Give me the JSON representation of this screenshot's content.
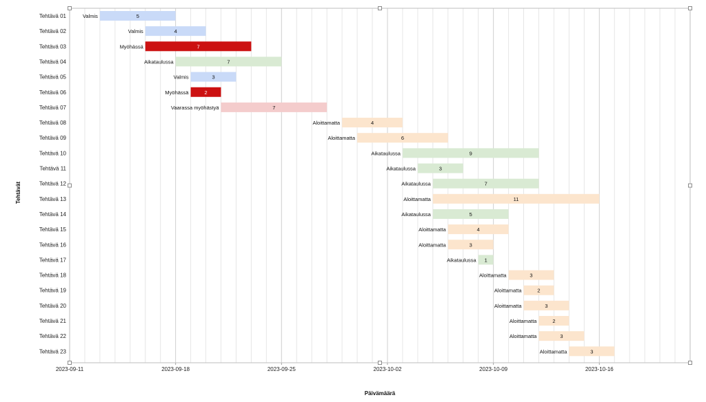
{
  "chart_data": {
    "type": "bar",
    "orientation": "horizontal-gantt",
    "title": "",
    "xlabel": "Päivämäärä",
    "ylabel": "Tehtävät",
    "xlim": [
      "2023-09-11",
      "2023-10-22"
    ],
    "x_ticks": [
      "2023-09-11",
      "2023-09-18",
      "2023-09-25",
      "2023-10-02",
      "2023-10-09",
      "2023-10-16"
    ],
    "grid": "vertical daily",
    "status_colors": {
      "Valmis": "#c9daf8",
      "Myöhässä": "#cc1111",
      "Aikataulussa": "#d9ead3",
      "Vaarassa myöhästyä": "#f4cccc",
      "Aloittamatta": "#fce5cd"
    },
    "tasks": [
      {
        "name": "Tehtävä 01",
        "status": "Valmis",
        "start": "2023-09-13",
        "duration": 5
      },
      {
        "name": "Tehtävä 02",
        "status": "Valmis",
        "start": "2023-09-16",
        "duration": 4
      },
      {
        "name": "Tehtävä 03",
        "status": "Myöhässä",
        "start": "2023-09-16",
        "duration": 7
      },
      {
        "name": "Tehtävä 04",
        "status": "Aikataulussa",
        "start": "2023-09-18",
        "duration": 7
      },
      {
        "name": "Tehtävä 05",
        "status": "Valmis",
        "start": "2023-09-19",
        "duration": 3
      },
      {
        "name": "Tehtävä 06",
        "status": "Myöhässä",
        "start": "2023-09-19",
        "duration": 2
      },
      {
        "name": "Tehtävä 07",
        "status": "Vaarassa myöhästyä",
        "start": "2023-09-21",
        "duration": 7
      },
      {
        "name": "Tehtävä 08",
        "status": "Aloittamatta",
        "start": "2023-09-29",
        "duration": 4
      },
      {
        "name": "Tehtävä 09",
        "status": "Aloittamatta",
        "start": "2023-09-30",
        "duration": 6
      },
      {
        "name": "Tehtävä 10",
        "status": "Aikataulussa",
        "start": "2023-10-03",
        "duration": 9
      },
      {
        "name": "Tehtävä 11",
        "status": "Aikataulussa",
        "start": "2023-10-04",
        "duration": 3
      },
      {
        "name": "Tehtävä 12",
        "status": "Aikataulussa",
        "start": "2023-10-05",
        "duration": 7
      },
      {
        "name": "Tehtävä 13",
        "status": "Aloittamatta",
        "start": "2023-10-05",
        "duration": 11
      },
      {
        "name": "Tehtävä 14",
        "status": "Aikataulussa",
        "start": "2023-10-05",
        "duration": 5
      },
      {
        "name": "Tehtävä 15",
        "status": "Aloittamatta",
        "start": "2023-10-06",
        "duration": 4
      },
      {
        "name": "Tehtävä 16",
        "status": "Aloittamatta",
        "start": "2023-10-06",
        "duration": 3
      },
      {
        "name": "Tehtävä 17",
        "status": "Aikataulussa",
        "start": "2023-10-08",
        "duration": 1
      },
      {
        "name": "Tehtävä 18",
        "status": "Aloittamatta",
        "start": "2023-10-10",
        "duration": 3
      },
      {
        "name": "Tehtävä 19",
        "status": "Aloittamatta",
        "start": "2023-10-11",
        "duration": 2
      },
      {
        "name": "Tehtävä 20",
        "status": "Aloittamatta",
        "start": "2023-10-11",
        "duration": 3
      },
      {
        "name": "Tehtävä 21",
        "status": "Aloittamatta",
        "start": "2023-10-12",
        "duration": 2
      },
      {
        "name": "Tehtävä 22",
        "status": "Aloittamatta",
        "start": "2023-10-12",
        "duration": 3
      },
      {
        "name": "Tehtävä 23",
        "status": "Aloittamatta",
        "start": "2023-10-14",
        "duration": 3
      }
    ]
  }
}
